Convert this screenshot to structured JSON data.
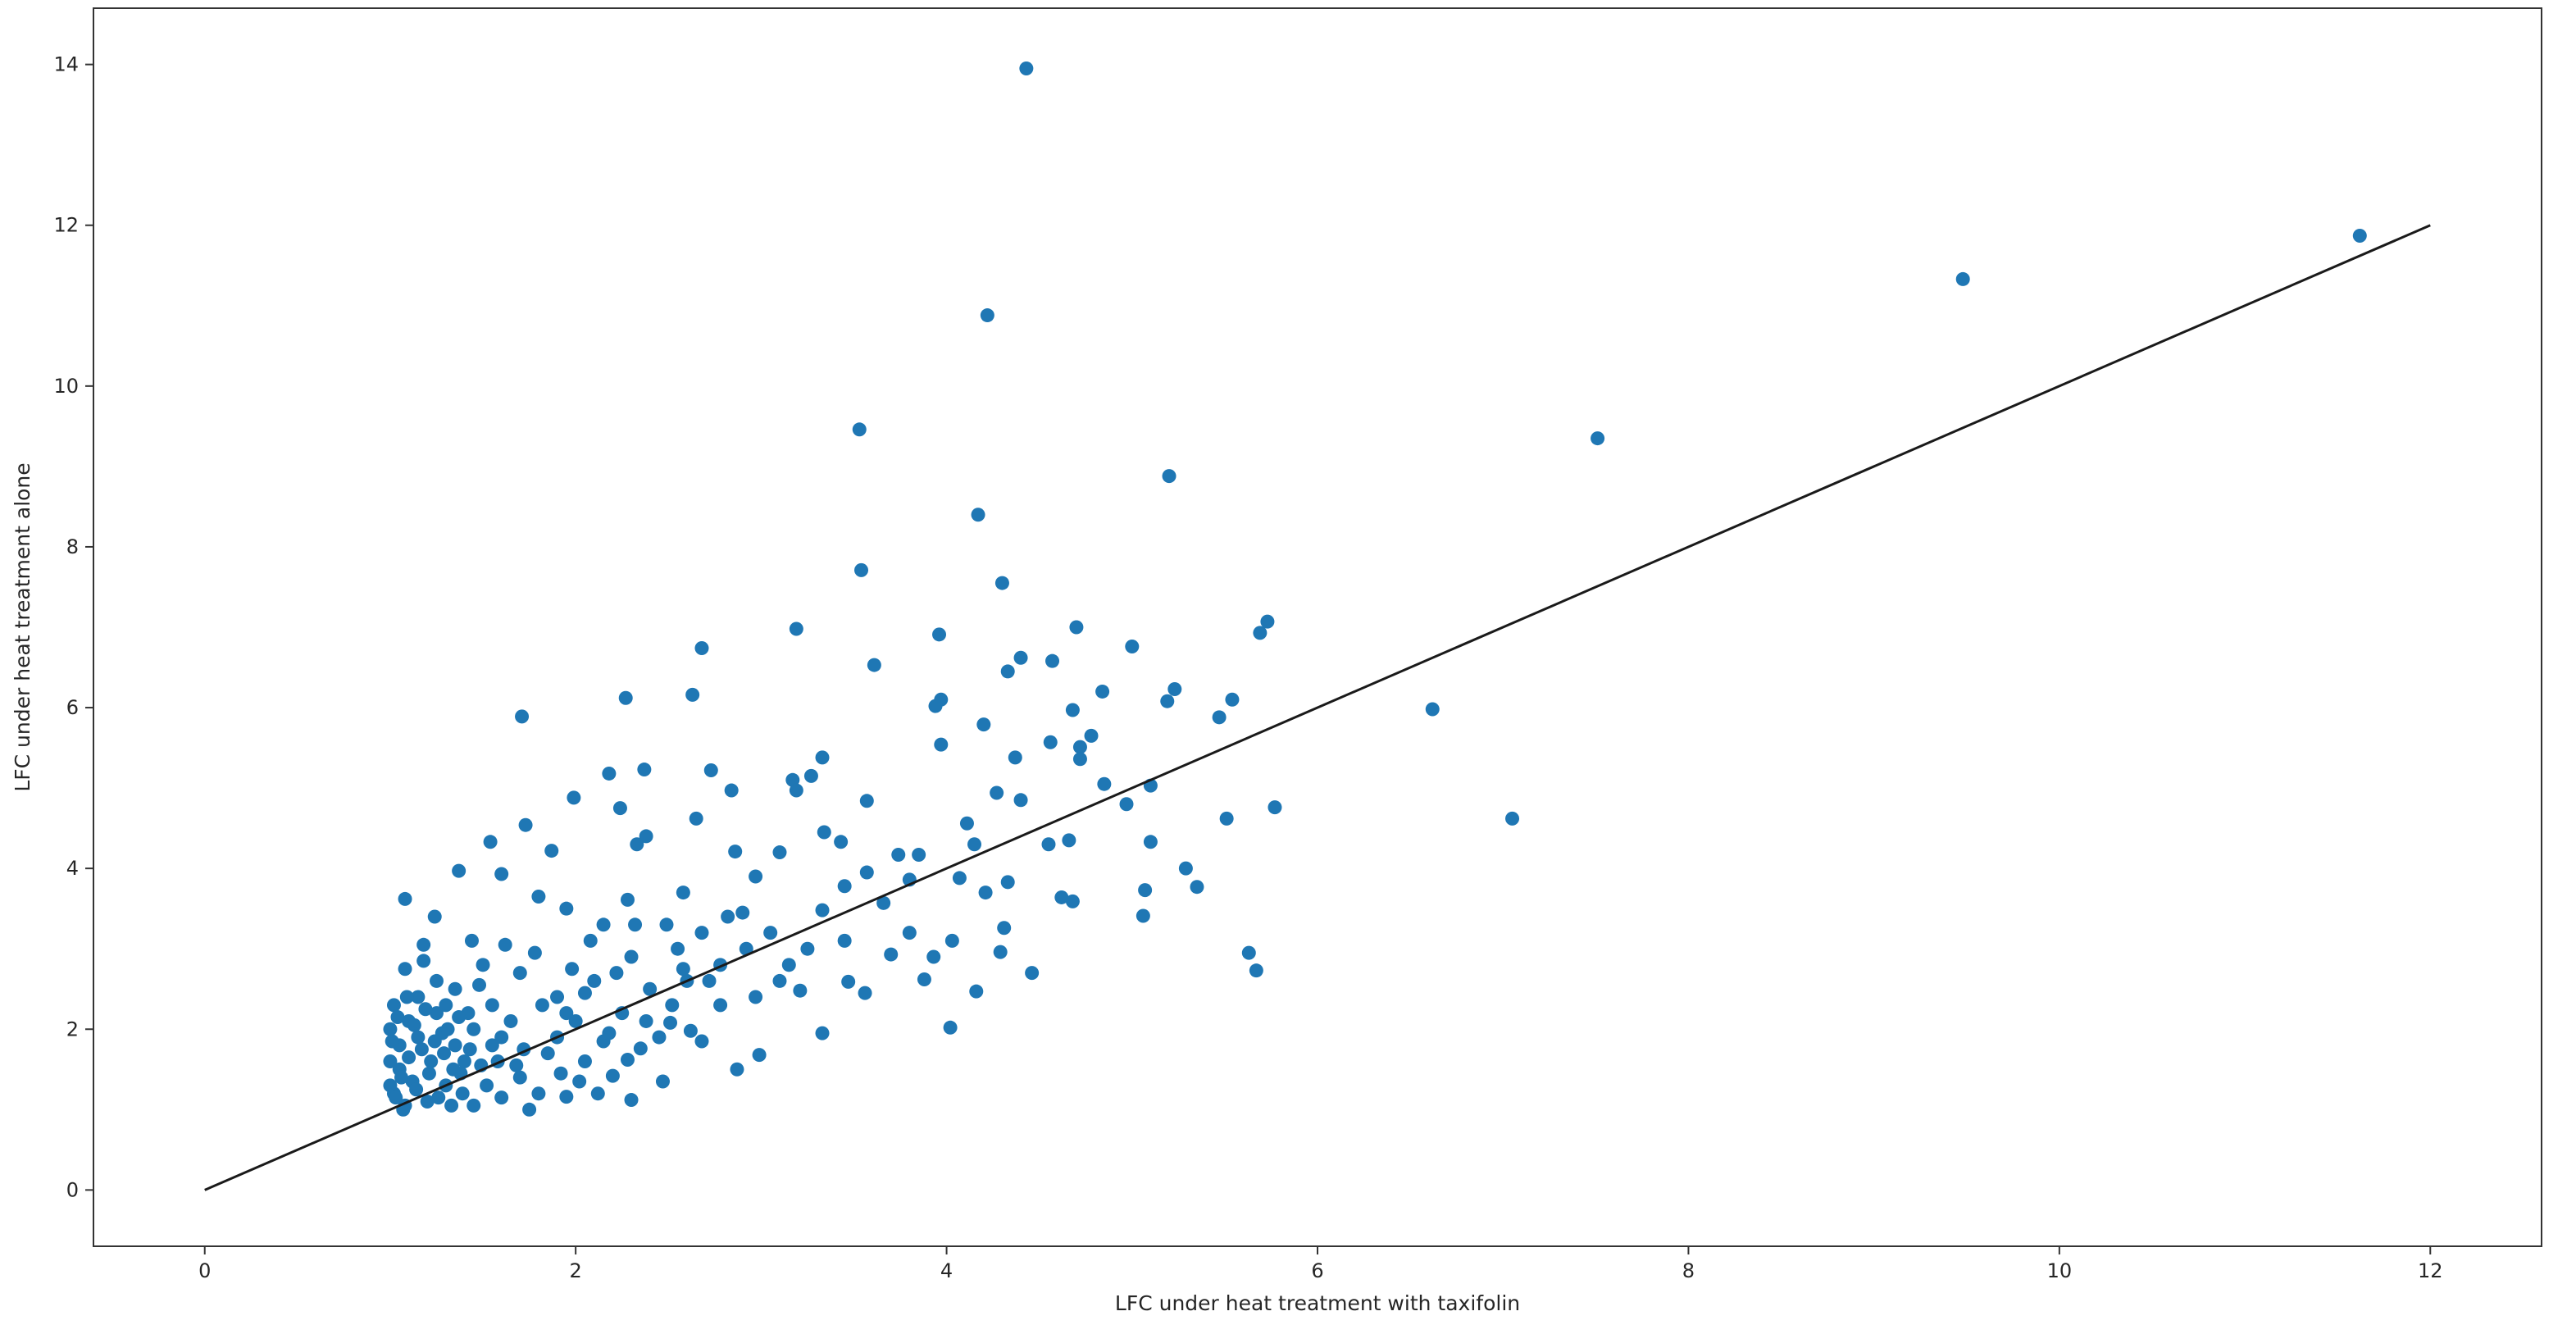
{
  "chart_data": {
    "type": "scatter",
    "xlabel": "LFC under heat treatment with taxifolin",
    "ylabel": "LFC under heat treatment alone",
    "color": "#1f77b4",
    "xlim": [
      -0.6,
      12.6
    ],
    "ylim": [
      -0.7,
      14.7
    ],
    "xticks": [
      0,
      2,
      4,
      6,
      8,
      10,
      12
    ],
    "yticks": [
      0,
      2,
      4,
      6,
      8,
      10,
      12,
      14
    ],
    "x": [
      4.43,
      11.62,
      9.48,
      4.22,
      3.53,
      7.51,
      5.2,
      4.17,
      3.54,
      4.3,
      5.73,
      4.7,
      3.19,
      5.69,
      3.96,
      2.68,
      5.0,
      4.4,
      4.57,
      3.61,
      4.33,
      5.23,
      4.84,
      2.27,
      2.63,
      5.19,
      3.97,
      5.54,
      3.94,
      6.62,
      4.68,
      1.71,
      5.47,
      4.2,
      4.78,
      3.97,
      4.56,
      4.72,
      4.72,
      4.37,
      2.37,
      2.73,
      3.33,
      3.17,
      3.27,
      5.1,
      2.18,
      4.85,
      1.99,
      3.19,
      2.84,
      4.27,
      4.4,
      7.05,
      5.77,
      5.51,
      4.97,
      1.73,
      2.65,
      2.24,
      4.11,
      3.34,
      3.57,
      5.1,
      4.55,
      4.66,
      3.85,
      4.15,
      2.38,
      2.33,
      3.1,
      1.87,
      1.54,
      3.43,
      1.37,
      1.6,
      2.86,
      3.74,
      5.29,
      5.07,
      5.35,
      4.21,
      4.62,
      4.68,
      4.33,
      1.08,
      3.45,
      4.07,
      3.8,
      2.97,
      2.58,
      2.28,
      1.95,
      1.8,
      3.57,
      5.06,
      4.31,
      3.66,
      3.33,
      2.9,
      2.49,
      2.15,
      1.24,
      1.44,
      1.18,
      5.63,
      5.67,
      4.29,
      3.8,
      4.03,
      3.93,
      3.7,
      4.02,
      4.46,
      4.16,
      3.88,
      3.56,
      3.21,
      3.33,
      2.99,
      2.97,
      2.78,
      2.62,
      2.51,
      2.35,
      2.68,
      2.28,
      3.47,
      3.1,
      2.87,
      2.2,
      2.02,
      1.95,
      2.3,
      2.47,
      2.78,
      2.55,
      2.1,
      2.3,
      1.9,
      1.7,
      1.55,
      1.5,
      1.35,
      1.25,
      1.15,
      1.05,
      1.02,
      1.08,
      1.2,
      1.3,
      1.4,
      1.45,
      1.6,
      1.7,
      1.8,
      1.85,
      1.9,
      2.0,
      2.05,
      2.15,
      2.25,
      2.4,
      2.45,
      2.6,
      1.6,
      1.65,
      1.35,
      1.25,
      1.15,
      1.1,
      1.05,
      1.0,
      1.0,
      1.0,
      1.12,
      1.22,
      1.33,
      1.38,
      1.52,
      1.58,
      1.75,
      1.72,
      1.92,
      2.12,
      2.18,
      1.45,
      1.28,
      1.48,
      1.62,
      1.78,
      1.98,
      2.08,
      2.32,
      2.52,
      2.72,
      2.92,
      3.05,
      3.15,
      3.25,
      3.45,
      1.08,
      1.18,
      1.02,
      1.07,
      1.3,
      1.42,
      1.55,
      1.68,
      1.82,
      1.95,
      2.05,
      2.22,
      2.38,
      2.58,
      2.68,
      2.82,
      1.03,
      1.06,
      1.1,
      1.14,
      1.17,
      1.21,
      1.26,
      1.29,
      1.34,
      1.39,
      1.01,
      1.04,
      1.09,
      1.13,
      1.19,
      1.24,
      1.31,
      1.37,
      1.43,
      1.49
    ],
    "values": [
      13.95,
      11.87,
      11.33,
      10.88,
      9.46,
      9.35,
      8.88,
      8.4,
      7.71,
      7.55,
      7.07,
      7.0,
      6.98,
      6.93,
      6.91,
      6.74,
      6.76,
      6.62,
      6.58,
      6.53,
      6.45,
      6.23,
      6.2,
      6.12,
      6.16,
      6.08,
      6.1,
      6.1,
      6.02,
      5.98,
      5.97,
      5.89,
      5.88,
      5.79,
      5.65,
      5.54,
      5.57,
      5.51,
      5.36,
      5.38,
      5.23,
      5.22,
      5.38,
      5.1,
      5.15,
      5.03,
      5.18,
      5.05,
      4.88,
      4.97,
      4.97,
      4.94,
      4.85,
      4.62,
      4.76,
      4.62,
      4.8,
      4.54,
      4.62,
      4.75,
      4.56,
      4.45,
      4.84,
      4.33,
      4.3,
      4.35,
      4.17,
      4.3,
      4.4,
      4.3,
      4.2,
      4.22,
      4.33,
      4.33,
      3.97,
      3.93,
      4.21,
      4.17,
      4.0,
      3.73,
      3.77,
      3.7,
      3.64,
      3.59,
      3.83,
      3.62,
      3.78,
      3.88,
      3.86,
      3.9,
      3.7,
      3.61,
      3.5,
      3.65,
      3.95,
      3.41,
      3.26,
      3.57,
      3.48,
      3.45,
      3.3,
      3.3,
      3.4,
      3.1,
      3.05,
      2.95,
      2.73,
      2.96,
      3.2,
      3.1,
      2.9,
      2.93,
      2.02,
      2.7,
      2.47,
      2.62,
      2.45,
      2.48,
      1.95,
      1.68,
      2.4,
      2.3,
      1.98,
      2.08,
      1.76,
      1.85,
      1.62,
      2.59,
      2.6,
      1.5,
      1.42,
      1.35,
      1.16,
      1.12,
      1.35,
      2.8,
      3.0,
      2.6,
      2.9,
      2.4,
      2.7,
      2.3,
      2.8,
      2.5,
      2.2,
      1.9,
      1.5,
      1.2,
      1.05,
      1.1,
      1.3,
      1.6,
      1.05,
      1.15,
      1.4,
      1.2,
      1.7,
      1.9,
      2.1,
      1.6,
      1.85,
      2.2,
      2.5,
      1.9,
      2.6,
      1.9,
      2.1,
      1.8,
      2.6,
      2.4,
      2.1,
      1.8,
      1.3,
      1.6,
      2.0,
      1.35,
      1.6,
      1.05,
      1.45,
      1.3,
      1.6,
      1.0,
      1.75,
      1.45,
      1.2,
      1.95,
      2.0,
      1.95,
      2.55,
      3.05,
      2.95,
      2.75,
      3.1,
      3.3,
      2.3,
      2.6,
      3.0,
      3.2,
      2.8,
      3.0,
      3.1,
      2.75,
      2.85,
      2.3,
      1.0,
      2.3,
      2.2,
      1.8,
      1.55,
      2.3,
      2.2,
      2.45,
      2.7,
      2.1,
      2.75,
      3.2,
      3.4,
      1.15,
      1.4,
      1.65,
      1.25,
      1.75,
      1.45,
      1.15,
      1.7,
      1.5,
      1.2,
      1.85,
      2.15,
      2.4,
      2.05,
      2.25,
      1.85,
      2.0,
      2.15,
      1.75,
      1.55
    ],
    "reference_line": {
      "x": [
        0,
        12
      ],
      "y": [
        0,
        12
      ],
      "color": "#1a1a1a"
    }
  }
}
